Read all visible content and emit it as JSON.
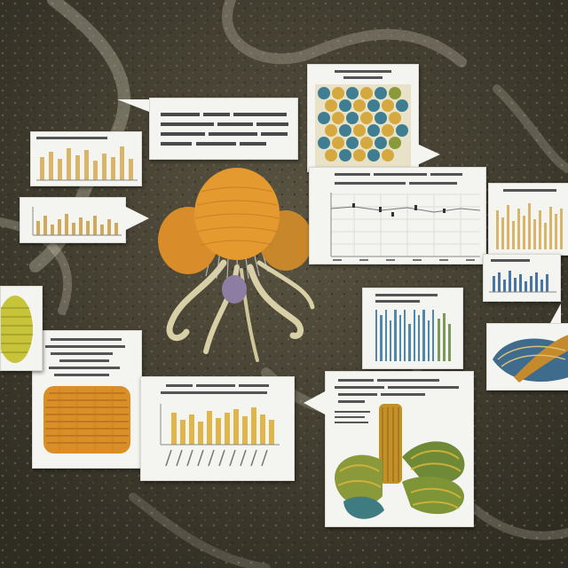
{
  "scene": {
    "background_color": "#4a4536",
    "accent_colors": {
      "orange": "#e0902a",
      "ochre": "#d6a940",
      "teal": "#3f7e92",
      "olive": "#8a9a3a",
      "steel_blue": "#4a74a6"
    },
    "cards": [
      {
        "id": "top-center-text-note",
        "kind": "text-label"
      },
      {
        "id": "top-left-bar-chart-card",
        "kind": "mini-bar-chart"
      },
      {
        "id": "left-bar-chart-card",
        "kind": "mini-bar-chart"
      },
      {
        "id": "top-right-honeycomb-card",
        "kind": "specimen-illustration"
      },
      {
        "id": "right-line-chart-card",
        "kind": "mini-line-chart"
      },
      {
        "id": "far-right-bar-chart-card",
        "kind": "mini-bar-chart"
      },
      {
        "id": "far-right-blue-chart-card",
        "kind": "mini-bar-chart"
      },
      {
        "id": "center-right-barcode-chart-card",
        "kind": "mini-bar-chart"
      },
      {
        "id": "lower-left-specimen-card",
        "kind": "specimen-illustration"
      },
      {
        "id": "lower-center-bar-chart-card",
        "kind": "mini-bar-chart"
      },
      {
        "id": "lower-right-specimen-card",
        "kind": "specimen-illustration"
      },
      {
        "id": "right-edge-specimen-card",
        "kind": "specimen-illustration"
      },
      {
        "id": "left-edge-specimen-card",
        "kind": "specimen-illustration"
      }
    ],
    "note": ""
  }
}
